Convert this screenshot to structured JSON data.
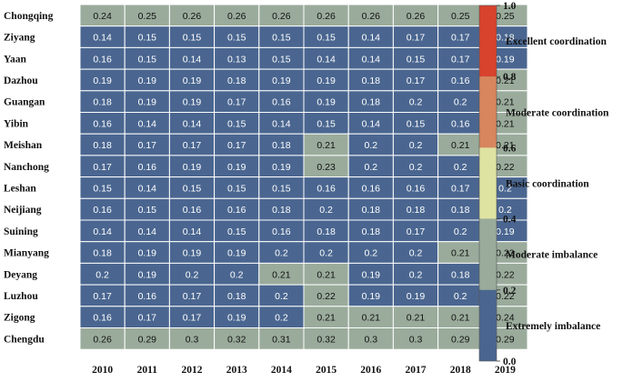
{
  "chart_data": {
    "type": "heatmap",
    "title": "",
    "rows": [
      "Chongqing",
      "Ziyang",
      "Yaan",
      "Dazhou",
      "Guangan",
      "Yibin",
      "Meishan",
      "Nanchong",
      "Leshan",
      "Neijiang",
      "Suining",
      "Mianyang",
      "Deyang",
      "Luzhou",
      "Zigong",
      "Chengdu"
    ],
    "columns": [
      "2010",
      "2011",
      "2012",
      "2013",
      "2014",
      "2015",
      "2016",
      "2017",
      "2018",
      "2019"
    ],
    "values": [
      [
        0.24,
        0.25,
        0.26,
        0.26,
        0.26,
        0.26,
        0.26,
        0.26,
        0.25,
        0.25
      ],
      [
        0.14,
        0.15,
        0.15,
        0.15,
        0.15,
        0.15,
        0.14,
        0.17,
        0.17,
        0.18
      ],
      [
        0.16,
        0.15,
        0.14,
        0.13,
        0.15,
        0.14,
        0.14,
        0.15,
        0.17,
        0.19
      ],
      [
        0.19,
        0.19,
        0.19,
        0.18,
        0.19,
        0.19,
        0.18,
        0.17,
        0.16,
        0.21
      ],
      [
        0.18,
        0.19,
        0.19,
        0.17,
        0.16,
        0.19,
        0.18,
        0.2,
        0.2,
        0.21
      ],
      [
        0.16,
        0.14,
        0.14,
        0.15,
        0.14,
        0.15,
        0.14,
        0.15,
        0.16,
        0.21
      ],
      [
        0.18,
        0.17,
        0.17,
        0.17,
        0.18,
        0.21,
        0.2,
        0.2,
        0.21,
        0.21
      ],
      [
        0.17,
        0.16,
        0.19,
        0.19,
        0.19,
        0.23,
        0.2,
        0.2,
        0.2,
        0.22
      ],
      [
        0.15,
        0.14,
        0.15,
        0.15,
        0.15,
        0.16,
        0.16,
        0.16,
        0.17,
        0.2
      ],
      [
        0.16,
        0.15,
        0.16,
        0.16,
        0.18,
        0.2,
        0.18,
        0.18,
        0.18,
        0.2
      ],
      [
        0.14,
        0.14,
        0.14,
        0.15,
        0.16,
        0.18,
        0.18,
        0.17,
        0.2,
        0.19
      ],
      [
        0.18,
        0.19,
        0.19,
        0.19,
        0.2,
        0.2,
        0.2,
        0.2,
        0.21,
        0.23
      ],
      [
        0.2,
        0.19,
        0.2,
        0.2,
        0.21,
        0.21,
        0.19,
        0.2,
        0.18,
        0.22
      ],
      [
        0.17,
        0.16,
        0.17,
        0.18,
        0.2,
        0.22,
        0.19,
        0.19,
        0.2,
        0.22
      ],
      [
        0.16,
        0.17,
        0.17,
        0.19,
        0.2,
        0.21,
        0.21,
        0.21,
        0.21,
        0.24
      ],
      [
        0.26,
        0.29,
        0.3,
        0.32,
        0.31,
        0.32,
        0.3,
        0.3,
        0.29,
        0.29
      ]
    ],
    "legend": {
      "ticks": [
        "1.0",
        "0.8",
        "0.6",
        "0.4",
        "0.2",
        "0.0"
      ],
      "bands": [
        {
          "label": "Excellent coordination",
          "min": 0.8,
          "max": 1.0,
          "color": "#d7432d"
        },
        {
          "label": "Moderate coordination",
          "min": 0.6,
          "max": 0.8,
          "color": "#d7865d"
        },
        {
          "label": "Basic coordination",
          "min": 0.4,
          "max": 0.6,
          "color": "#dfe3a2"
        },
        {
          "label": "Moderate imbalance",
          "min": 0.2,
          "max": 0.4,
          "color": "#9aab9b"
        },
        {
          "label": "Extremely imbalance",
          "min": 0.0,
          "max": 0.2,
          "color": "#4a6690"
        }
      ]
    },
    "colors": {
      "low": "#4a6690",
      "mid": "#9aab9b",
      "text_on_low": "#ffffff",
      "text_on_mid": "#111111"
    }
  }
}
